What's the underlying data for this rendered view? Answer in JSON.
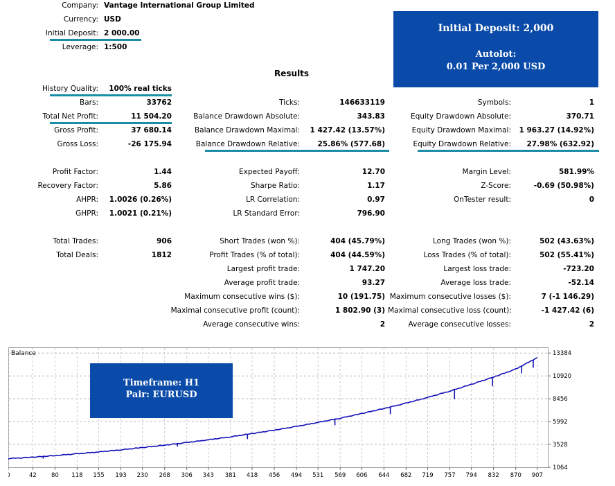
{
  "header": {
    "company_label": "Company:",
    "company": "Vantage International Group Limited",
    "currency_label": "Currency:",
    "currency": "USD",
    "deposit_label": "Initial Deposit:",
    "deposit": "2 000.00",
    "leverage_label": "Leverage:",
    "leverage": "1:500"
  },
  "results_title": "Results",
  "promo": {
    "line1": "Initial Deposit: 2,000",
    "line2": "Autolot:",
    "line3": "0.01 Per 2,000 USD"
  },
  "chart_box": {
    "line1": "Timeframe: H1",
    "line2": "Pair: EURUSD"
  },
  "col1": [
    {
      "label": "History Quality:",
      "value": "100% real ticks"
    },
    {
      "label": "Bars:",
      "value": "33762"
    },
    {
      "label": "Total Net Profit:",
      "value": "11 504.20"
    },
    {
      "label": "Gross Profit:",
      "value": "37 680.14"
    },
    {
      "label": "Gross Loss:",
      "value": "-26 175.94"
    },
    {
      "label": "Profit Factor:",
      "value": "1.44"
    },
    {
      "label": "Recovery Factor:",
      "value": "5.86"
    },
    {
      "label": "AHPR:",
      "value": "1.0026 (0.26%)"
    },
    {
      "label": "GHPR:",
      "value": "1.0021 (0.21%)"
    },
    {
      "label": "Total Trades:",
      "value": "906"
    },
    {
      "label": "Total Deals:",
      "value": "1812"
    }
  ],
  "col2": [
    {
      "label": "Ticks:",
      "value": "146633119"
    },
    {
      "label": "Balance Drawdown Absolute:",
      "value": "343.83"
    },
    {
      "label": "Balance Drawdown Maximal:",
      "value": "1 427.42 (13.57%)"
    },
    {
      "label": "Balance Drawdown Relative:",
      "value": "25.86% (577.68)"
    },
    {
      "label": "Expected Payoff:",
      "value": "12.70"
    },
    {
      "label": "Sharpe Ratio:",
      "value": "1.17"
    },
    {
      "label": "LR Correlation:",
      "value": "0.97"
    },
    {
      "label": "LR Standard Error:",
      "value": "796.90"
    },
    {
      "label": "Short Trades (won %):",
      "value": "404 (45.79%)"
    },
    {
      "label": "Profit Trades (% of total):",
      "value": "404 (44.59%)"
    },
    {
      "label": "Largest profit trade:",
      "value": "1 747.20"
    },
    {
      "label": "Average profit trade:",
      "value": "93.27"
    },
    {
      "label": "Maximum consecutive wins ($):",
      "value": "10 (191.75)"
    },
    {
      "label": "Maximal consecutive profit (count):",
      "value": "1 802.90 (3)"
    },
    {
      "label": "Average consecutive wins:",
      "value": "2"
    }
  ],
  "col3": [
    {
      "label": "Symbols:",
      "value": "1"
    },
    {
      "label": "Equity Drawdown Absolute:",
      "value": "370.71"
    },
    {
      "label": "Equity Drawdown Maximal:",
      "value": "1 963.27 (14.92%)"
    },
    {
      "label": "Equity Drawdown Relative:",
      "value": "27.98% (632.92)"
    },
    {
      "label": "Margin Level:",
      "value": "581.99%"
    },
    {
      "label": "Z-Score:",
      "value": "-0.69 (50.98%)"
    },
    {
      "label": "OnTester result:",
      "value": "0"
    },
    {
      "label": "Long Trades (won %):",
      "value": "502 (43.63%)"
    },
    {
      "label": "Loss Trades (% of total):",
      "value": "502 (55.41%)"
    },
    {
      "label": "Largest loss trade:",
      "value": "-723.20"
    },
    {
      "label": "Average loss trade:",
      "value": "-52.14"
    },
    {
      "label": "Maximum consecutive losses ($):",
      "value": "7 (-1 146.29)"
    },
    {
      "label": "Maximal consecutive loss (count):",
      "value": "-1 427.42 (6)"
    },
    {
      "label": "Average consecutive losses:",
      "value": "2"
    }
  ],
  "chart_data": {
    "type": "line",
    "title": "Balance",
    "x_ticks": [
      "0",
      "42",
      "80",
      "118",
      "155",
      "193",
      "230",
      "268",
      "306",
      "343",
      "381",
      "418",
      "456",
      "494",
      "531",
      "569",
      "606",
      "644",
      "682",
      "719",
      "757",
      "794",
      "832",
      "870",
      "907"
    ],
    "y_ticks": [
      "13384",
      "10920",
      "8456",
      "5992",
      "3528",
      "1064"
    ],
    "xlim": [
      0,
      925
    ],
    "ylim": [
      1064,
      14000
    ],
    "series": [
      {
        "name": "Balance",
        "color": "#1010b8",
        "x": [
          0,
          42,
          80,
          118,
          155,
          193,
          230,
          268,
          306,
          343,
          381,
          418,
          456,
          494,
          531,
          569,
          606,
          644,
          682,
          719,
          757,
          794,
          832,
          870,
          907
        ],
        "y": [
          2000,
          2150,
          2330,
          2520,
          2720,
          2950,
          3190,
          3450,
          3730,
          4030,
          4350,
          4700,
          5070,
          5470,
          5900,
          6360,
          6860,
          7400,
          7980,
          8600,
          9280,
          10010,
          10800,
          11650,
          12900
        ]
      }
    ],
    "dips": [
      [
        60,
        2000
      ],
      [
        290,
        3300
      ],
      [
        410,
        4100
      ],
      [
        560,
        5600
      ],
      [
        655,
        6800
      ],
      [
        765,
        8400
      ],
      [
        830,
        9800
      ],
      [
        880,
        11200
      ],
      [
        900,
        11800
      ]
    ],
    "grid": true
  }
}
